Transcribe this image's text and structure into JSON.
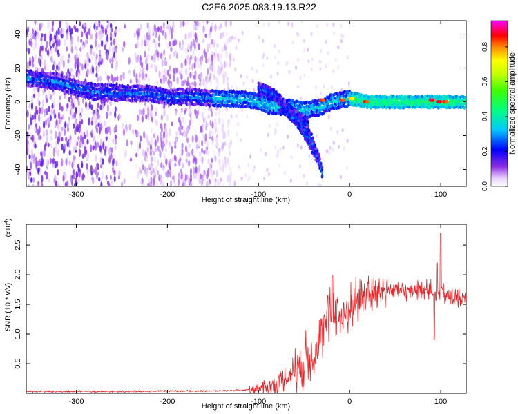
{
  "figure": {
    "title": "C2E6.2025.083.19.13.R22"
  },
  "colors": {
    "snr_line": "#e8262a",
    "axis": "#000000",
    "background": "#ffffff"
  },
  "chart_data": [
    {
      "type": "heatmap",
      "title": "C2E6.2025.083.19.13.R22",
      "xlabel": "Height of straight line (km)",
      "ylabel": "Frequency (Hz)",
      "xlim": [
        -355,
        128
      ],
      "ylim": [
        -50,
        48
      ],
      "x_ticks": [
        -300,
        -200,
        -100,
        0,
        100
      ],
      "x_tick_labels": [
        "-300",
        "-200",
        "-100",
        "0",
        "100"
      ],
      "y_ticks": [
        -40,
        -20,
        0,
        20,
        40
      ],
      "y_tick_labels": [
        "-40",
        "-20",
        "0",
        "20",
        "40"
      ],
      "colorbar": {
        "label": "Normalized spectral amplitude",
        "range": [
          0,
          0.95
        ],
        "ticks": [
          0,
          0.2,
          0.4,
          0.6,
          0.8
        ],
        "tick_labels": [
          "0.0",
          "0.2",
          "0.4",
          "0.6",
          "0.8"
        ],
        "colormap": "rainbow (white-violet-blue-cyan-green-yellow-red-magenta)"
      },
      "ridges": [
        {
          "name": "main",
          "points": [
            [
              -355,
              14
            ],
            [
              -320,
              12
            ],
            [
              -300,
              8
            ],
            [
              -280,
              6
            ],
            [
              -250,
              5
            ],
            [
              -220,
              5
            ],
            [
              -200,
              3
            ],
            [
              -170,
              3
            ],
            [
              -150,
              2
            ],
            [
              -130,
              2
            ],
            [
              -110,
              1
            ],
            [
              -100,
              0
            ],
            [
              -90,
              -2
            ],
            [
              -80,
              -3
            ],
            [
              -70,
              -3
            ],
            [
              -60,
              -4
            ],
            [
              -50,
              -5
            ],
            [
              -40,
              -4
            ],
            [
              -30,
              -3
            ],
            [
              -20,
              0
            ],
            [
              0,
              2
            ],
            [
              20,
              0
            ],
            [
              50,
              0
            ],
            [
              80,
              0
            ],
            [
              100,
              0
            ],
            [
              128,
              0
            ]
          ]
        },
        {
          "name": "branch-1",
          "points": [
            [
              -100,
              8
            ],
            [
              -85,
              5
            ],
            [
              -70,
              -2
            ],
            [
              -55,
              -10
            ],
            [
              -45,
              -14
            ]
          ]
        },
        {
          "name": "branch-2",
          "points": [
            [
              -75,
              -3
            ],
            [
              -60,
              -10
            ],
            [
              -50,
              -18
            ],
            [
              -42,
              -26
            ],
            [
              -36,
              -33
            ]
          ]
        },
        {
          "name": "branch-3",
          "points": [
            [
              -60,
              -8
            ],
            [
              -50,
              -15
            ],
            [
              -42,
              -22
            ],
            [
              -35,
              -32
            ],
            [
              -30,
              -42
            ]
          ]
        }
      ],
      "hotspots": [
        {
          "x": -30,
          "y": 1,
          "level": 0.9
        },
        {
          "x": -8,
          "y": 1,
          "level": 0.9
        },
        {
          "x": 2,
          "y": 2,
          "level": 0.8
        },
        {
          "x": 18,
          "y": 0,
          "level": 0.9
        },
        {
          "x": 90,
          "y": 1,
          "level": 0.95
        },
        {
          "x": 98,
          "y": 0,
          "level": 0.95
        },
        {
          "x": 105,
          "y": 0,
          "level": 0.9
        }
      ]
    },
    {
      "type": "line",
      "xlabel": "Height of straight line (km)",
      "ylabel": "SNR (10 * v/v)",
      "y_scale_label": "(x10",
      "y_scale_exponent": "4",
      "xlim": [
        -355,
        128
      ],
      "ylim": [
        0,
        2.85
      ],
      "x_ticks": [
        -300,
        -200,
        -100,
        0,
        100
      ],
      "x_tick_labels": [
        "-300",
        "-200",
        "-100",
        "0",
        "100"
      ],
      "y_ticks": [
        0.5,
        1.0,
        1.5,
        2.0,
        2.5
      ],
      "y_tick_labels": [
        "0.5",
        "1.0",
        "1.5",
        "2.0",
        "2.5"
      ],
      "series": [
        {
          "color": "#e8262a",
          "x": [
            -355,
            -300,
            -250,
            -200,
            -150,
            -120,
            -100,
            -90,
            -80,
            -70,
            -60,
            -50,
            -40,
            -30,
            -25,
            -20,
            -15,
            -10,
            -5,
            0,
            10,
            20,
            30,
            40,
            50,
            60,
            70,
            80,
            90,
            95,
            100,
            105,
            110,
            120,
            128
          ],
          "y": [
            0.03,
            0.03,
            0.03,
            0.04,
            0.04,
            0.05,
            0.08,
            0.1,
            0.15,
            0.25,
            0.4,
            0.55,
            0.7,
            0.95,
            1.2,
            1.35,
            1.45,
            1.25,
            1.3,
            1.45,
            1.6,
            1.65,
            1.7,
            1.75,
            1.75,
            1.7,
            1.75,
            1.75,
            1.75,
            1.6,
            1.75,
            1.65,
            1.62,
            1.6,
            1.58
          ]
        }
      ],
      "spikes": [
        {
          "x": -19,
          "y": 1.98
        },
        {
          "x": -24,
          "y": 1.65
        },
        {
          "x": 96,
          "y": 2.2
        },
        {
          "x": 100,
          "y": 2.7
        },
        {
          "x": 93,
          "y": 0.9
        }
      ]
    }
  ]
}
